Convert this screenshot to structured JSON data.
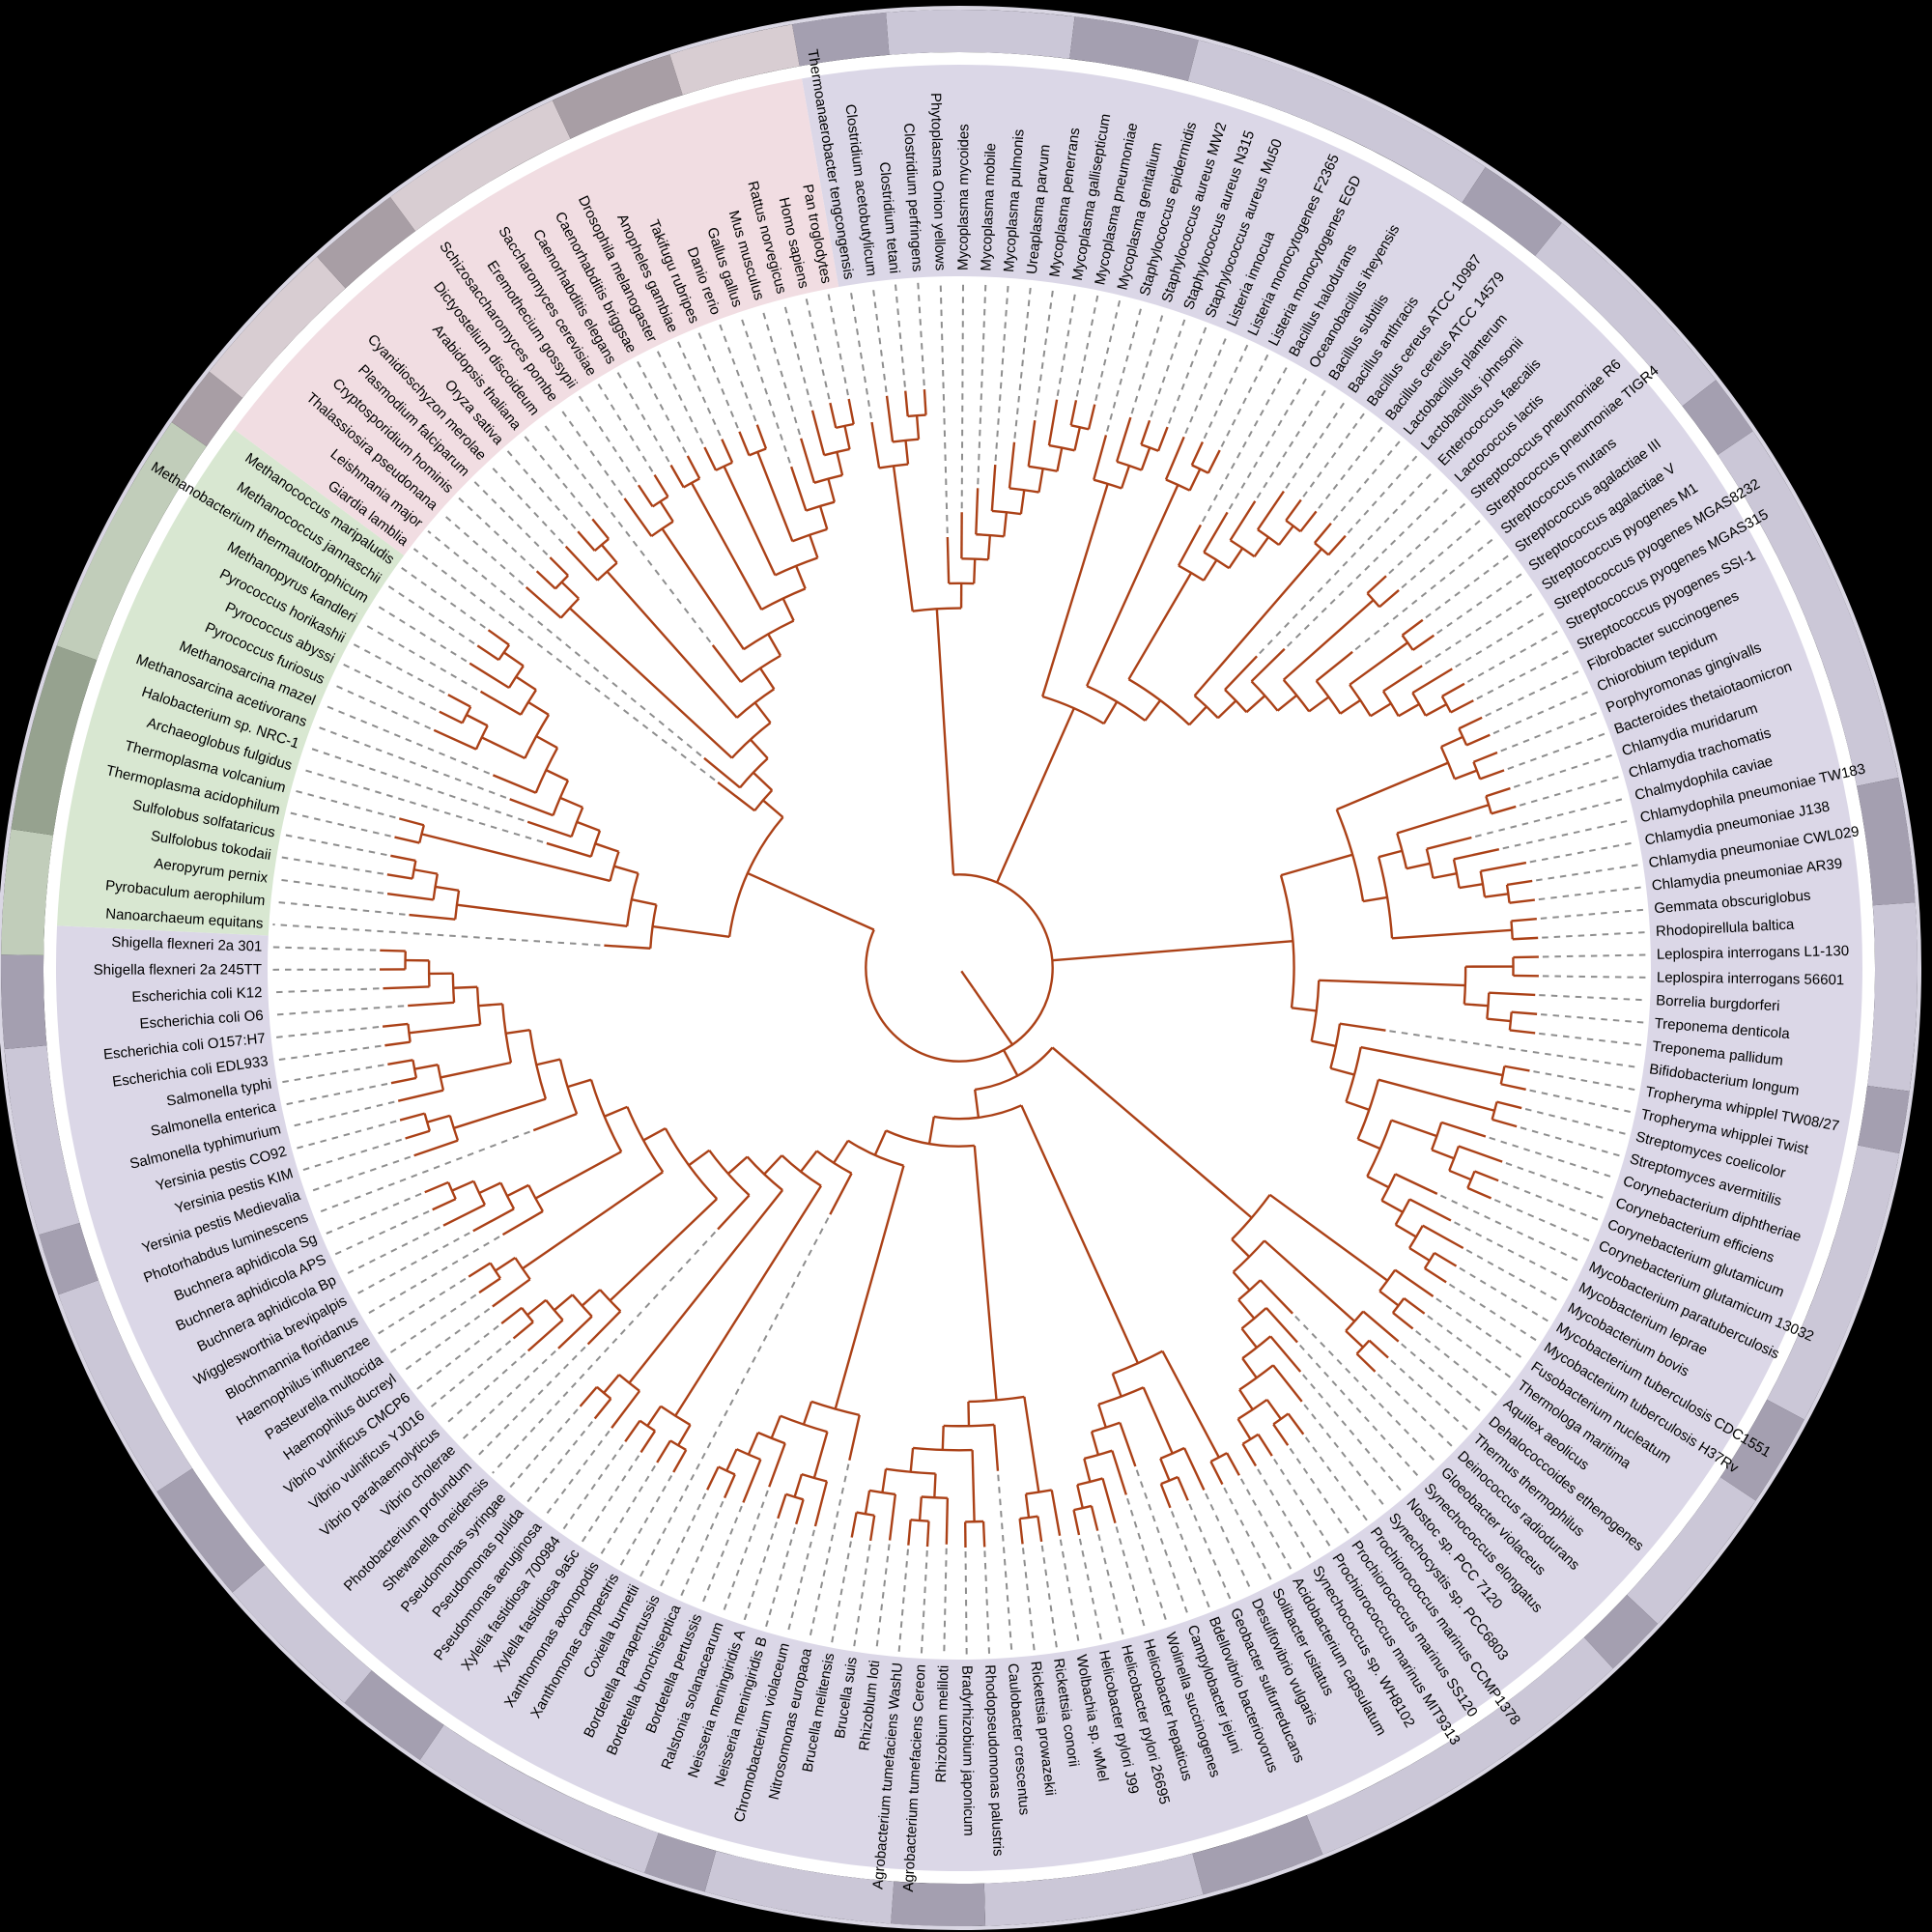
{
  "figure": {
    "kind": "circular_phylogenetic_tree",
    "background": "#000000",
    "inner_disc": "#FFFFFF"
  },
  "palette": {
    "branch": "#AB4117",
    "dash": "#8E8E8E",
    "label": "#000000",
    "sector_lavender": "#DBD7E7",
    "sector_green": "#D8E7D1",
    "sector_pink": "#F1DDE2",
    "ring_lavender_light": "#CBC7D7",
    "ring_lavender_dark": "#A49FB0",
    "ring_green_light": "#C1CDBA",
    "ring_green_dark": "#96A28F",
    "ring_pink_light": "#D8CDD2",
    "ring_pink_dark": "#A89EA5",
    "ring_outer_edge": "#D9D6E3"
  },
  "sectors": [
    {
      "id": "lavender",
      "leaf_start": 0,
      "leaf_end": 149
    },
    {
      "id": "green",
      "leaf_start": 150,
      "leaf_end": 167
    },
    {
      "id": "pink",
      "leaf_start": 168,
      "leaf_end": 190
    }
  ],
  "ring_pattern": [
    [
      3,
      1
    ],
    [
      6,
      0
    ],
    [
      4,
      1
    ],
    [
      10,
      0
    ],
    [
      3,
      1
    ],
    [
      7,
      0
    ],
    [
      2,
      1
    ],
    [
      12,
      0
    ],
    [
      4,
      1
    ],
    [
      6,
      0
    ],
    [
      2,
      1
    ],
    [
      9,
      0
    ],
    [
      3,
      1
    ],
    [
      5,
      0
    ],
    [
      2,
      1
    ],
    [
      11,
      0
    ],
    [
      4,
      1
    ],
    [
      7,
      0
    ],
    [
      3,
      1
    ],
    [
      6,
      0
    ],
    [
      2,
      1
    ],
    [
      8,
      0
    ],
    [
      3,
      1
    ],
    [
      5,
      0
    ],
    [
      4,
      1
    ],
    [
      7,
      0
    ],
    [
      2,
      1
    ],
    [
      6,
      0
    ],
    [
      3,
      1
    ],
    [
      4,
      0
    ],
    [
      6,
      1
    ],
    [
      8,
      0
    ],
    [
      2,
      1
    ],
    [
      5,
      0
    ],
    [
      3,
      1
    ],
    [
      6,
      0
    ],
    [
      4,
      1
    ],
    [
      4,
      0
    ]
  ],
  "chart_data": {
    "type": "tree",
    "leaf_count": 191,
    "newick": "(((((Thermoanaerobacter tengcongensis,(Clostridium acetobutylicum,(Clostridium tetani,Clostridium perfringens))),(Phytoplasma Onion yellows,(Mycoplasma mycoides,(Mycoplasma mobile,(Mycoplasma pulmonis,(Ureaplasma parvum,(Mycoplasma penerrans,(Mycoplasma gallisepticum,(Mycoplasma pneumoniae,Mycoplasma genitalium))))))))),((Staphylococcus epidermidis,(Staphylococcus aureus MW2,(Staphylococcus aureus N315,Staphylococcus aureus Mu50))),((Listeria innocua,(Listeria monocytogenes F2365,Listeria monocytogenes EGD)),((Bacillus halodurans,(Oceanobacillus iheyensis,(Bacillus subtilis,(Bacillus anthracis,(Bacillus cereus ATCC 10987,Bacillus cereus ATCC 14579))))),((Lactobacillus planterum,Lactobacillus johnsonii),(Enterococcus faecalis,(Lactococcus lactis,((Streptococcus pneumoniae R6,Streptococcus pneumoniae TIGR4),(Streptococcus mutans,((Streptococcus agalactiae III,Streptococcus agalactiae V),(Streptococcus pyogenes M1,(Streptococcus pyogenes MGAS8232,(Streptococcus pyogenes MGAS315,Streptococcus pyogenes SSI-1)))))))))))),((((Fibrobacter succinogenes,Chiorobium tepidum),(Porphyromonas gingivalls,Bacteroides thetaiotaomicron)),(((Chlamydia muridarum,Chlamydia trachomatis),(Chalmydophila caviae,(Chlamydophila pneumoniae TW183,(Chlamydia pneumoniae J138,(Chlamydia pneumoniae CWL029,Chlamydia pneumoniae AR39))))),(Gemmata obscuriglobus,Rhodopirellula baltica))),(((Leplospira interrogans L1-130,Leplospira interrogans 56601),(Borrelia burgdorferi,(Treponema denticola,Treponema pallidum))),(Bifidobacterium longum,((Tropheryma whipplel TW08/27,Tropheryma whipplei Twist),((Streptomyces coelicolor,Streptomyces avermitilis),((Corynebacterium diphtheriae,(Corynebacterium efficiens,(Corynebacterium glutamicum,Corynebacterium glutamicum 13032))),(Mycobacterium paratuberculosis,(Mycobacterium leprae,(Mycobacterium bovis,(Mycobacterium tuberculosis CDC1551,Mycobacterium tuberculosis H37Rv)))))))))),(((Fusobacterium nucleatum,(Thermologa maritima,Aquilex aeolicus)),((Dehalococcoides ethenogenes,(Thermus thermophilus,Deinococcus radiodurans)),(Gloeobacter violaceus,(Synechococcus elongatus,(Nostoc sp. PCC 7120,(Synechocystis sp. PCC6803,((Prochiorococcus marinus CCMP1378,Prochiorococcus marinus SS120),(Prochiorococcus marinus MIT9313,Synechococcus sp. WH8102)))))))),(((Acidobacterium capsulatum,Solibacter usitatus),((Desulfovibrio vulgaris,(Geobacter sulfurreducans,Bdellovibrio bacteriovorus)),(Campylobacter jejuni,(Wolinella succinogenes,(Helicobacter hepaticus,(Helicobacter pylori 26695,Helicobacter pylori J99)))))),(((Wolbachia sp. wMel,(Rickettsia conorii,Rickettsia prowazekii)),(Caulobacter crescentus,((Rhodopseudomonas palustris,Bradyrhizobium japonicum),((Rhizobium meliloti,(Agrobacterium tumefaciens Cereon,Agrobacterium tumefaciens WashU)),(Rhizoblum loti,(Brucella suis,Brucella melitensis)))))),((Nitrosomonas europaoa,((Chromobacterium violaceum,(Neisseria meningiridis B,Neisseria meningiridis A)),(Ralstonia solanacearum,(Bordetella pertussis,(Bordetella bronchiseptica,Bordetella parapertussis))))),(Coxiella burnetii,(((Xanthomonas campestris,Xanthomonas axonopodis),(Xylella fastidiosa 9a5c,Xylelia fastidiosa 700984)),((Pseudomonas aeruginosa,(Pseudomonas pulida,Pseudomonas syringae)),(Shewanella oneidensis,((Photobacterium profundum,(Vibrio cholerae,(Vibrio parahaemolyticus,(Vibrio vulnificus YJ016,Vibrio vulnificus CMCP6)))),((Haemophilus ducreyl,(Pasteurella multocida,Haemophilus influenzee)),((Blochmannia floridanus,(Wigglesworthia brevipalpis,(Buchnera aphidicola Bp,(Buchnera aphidicola APS,Buchnera aphidicola Sg)))),(Photorhabdus luminescens,((Yersinia pestis Medievalia,(Yersinia pestis KIM,Yersinia pestis CO92)),((Salmonella typhimurium,(Salmonella enterica,Salmonella typhi)),((Escherichia coli EDL933,Escherichia coli O157:H7),(Escherichia coli O6,(Escherichia coli K12,(Shigella flexneri 2a 245TT,Shigella flexneri 2a 301)))))))))))))))))),((Nanoarchaeum equitans,((Pyrobaculum aerophilum,(Aeropyrum pernix,(Sulfolobus tokodaii,Sulfolobus solfataricus))),((Thermoplasma acidophilum,Thermoplasma volcanium),(Archaeoglobus fulgidus,(Halobacterium sp. NRC-1,(Methanosarcina acetivorans,(Methanosarcina mazel,((Pyrococcus furiosus,(Pyrococcus abyssi,Pyrococcus horikashii)),(Methanopyrus kandleri,(Methanobacterium thermautotrophicum,(Methanococcus jannaschii,Methanococcus maripaludis))))))))))),(Giardia lamblia,(Leishmania major,((Thalassiosira pseudonana,(Cryptosporidium hominis,Plasmodium falciparum)),((Cyanidioschyzon merolae,(Oryza sativa,Arabidopsis thaliana)),(Dictyostelium discoideum,((Schizosaccharomyces pombe,(Eremothecium gossypii,Saccharomyces cerevisiae)),((Caenorhabditis elegans,Caenorhabditis briggsae),((Drosophila melanogaster,Anopheles gambiae),((Takifugu rubripes,Danio rerio),(Gallus gallus,(Mus musculus,(Rattus norvegicus,(Homo sapiens,Pan troglodytes)))))))))))))))"
  }
}
